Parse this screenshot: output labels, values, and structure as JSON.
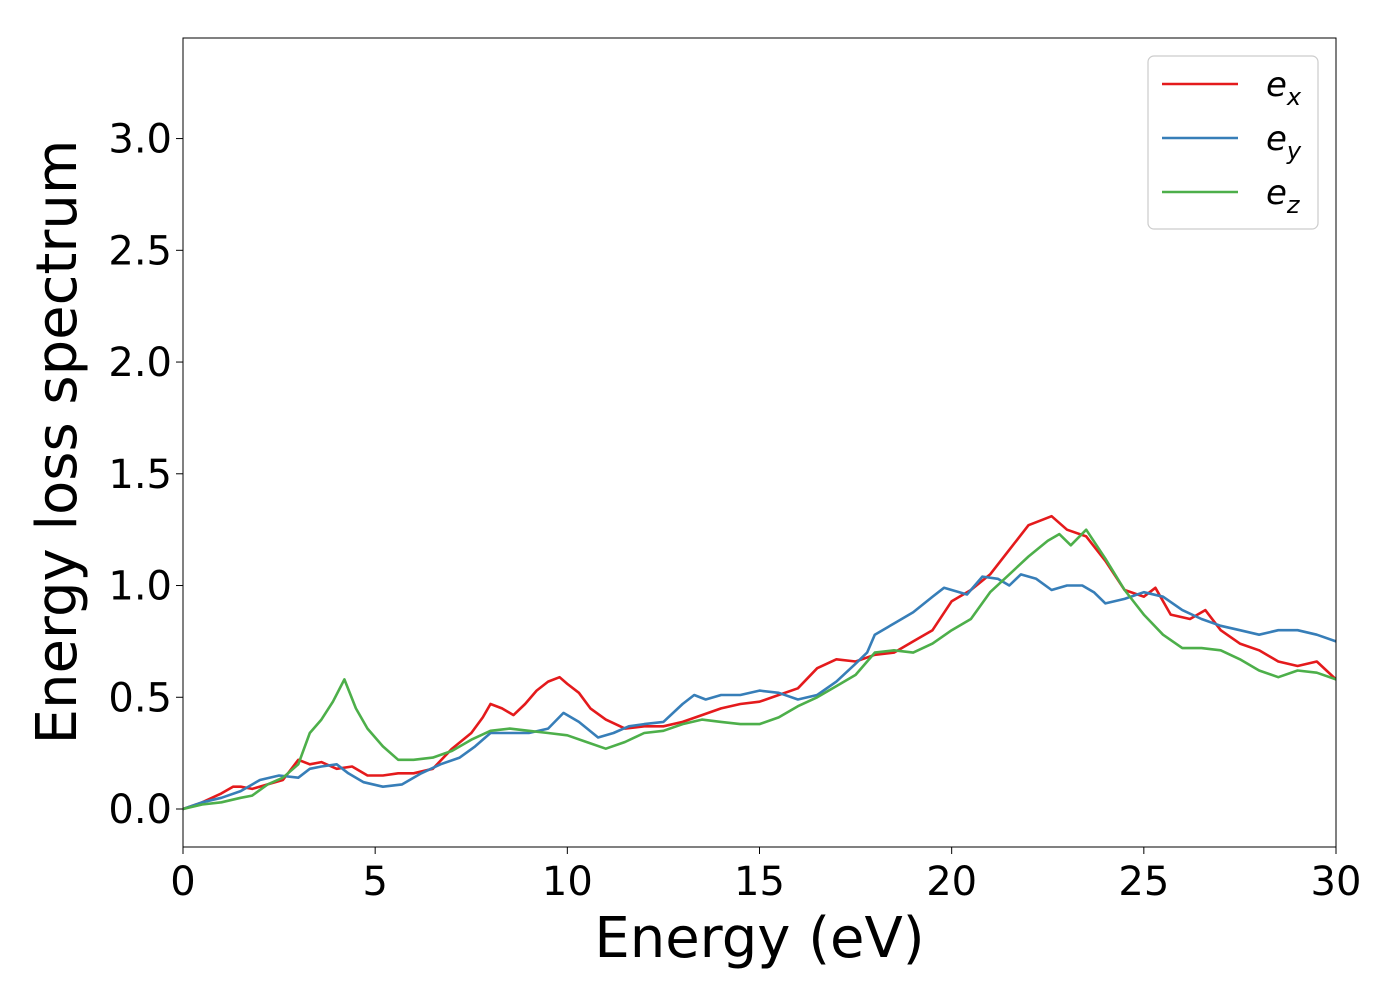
{
  "chart_data": {
    "type": "line",
    "xlabel": "Energy (eV)",
    "ylabel": "Energy loss spectrum",
    "xlim": [
      0,
      30
    ],
    "ylim": [
      -0.17,
      3.45
    ],
    "xticks": [
      0,
      5,
      10,
      15,
      20,
      25,
      30
    ],
    "yticks": [
      0.0,
      0.5,
      1.0,
      1.5,
      2.0,
      2.5,
      3.0
    ],
    "xtick_labels": [
      "0",
      "5",
      "10",
      "15",
      "20",
      "25",
      "30"
    ],
    "ytick_labels": [
      "0.0",
      "0.5",
      "1.0",
      "1.5",
      "2.0",
      "2.5",
      "3.0"
    ],
    "grid": false,
    "legend_position": "top-right",
    "series": [
      {
        "name": "e_x",
        "base": "e",
        "sub": "x",
        "color": "#e41a1c",
        "x": [
          0,
          0.5,
          1.0,
          1.3,
          1.5,
          1.8,
          2.2,
          2.6,
          3.0,
          3.3,
          3.6,
          4.0,
          4.4,
          4.8,
          5.2,
          5.6,
          6.0,
          6.5,
          7.0,
          7.5,
          7.8,
          8.0,
          8.3,
          8.6,
          8.9,
          9.2,
          9.5,
          9.8,
          10.0,
          10.3,
          10.6,
          11.0,
          11.5,
          12.0,
          12.5,
          13.0,
          13.5,
          14.0,
          14.5,
          15.0,
          15.5,
          16.0,
          16.5,
          17.0,
          17.5,
          18.0,
          18.5,
          19.0,
          19.5,
          20.0,
          20.5,
          21.0,
          21.5,
          22.0,
          22.3,
          22.6,
          23.0,
          23.5,
          24.0,
          24.5,
          25.0,
          25.3,
          25.7,
          26.2,
          26.6,
          27.0,
          27.5,
          28.0,
          28.5,
          29.0,
          29.5,
          30.0
        ],
        "y": [
          0.0,
          0.03,
          0.07,
          0.1,
          0.1,
          0.09,
          0.11,
          0.13,
          0.22,
          0.2,
          0.21,
          0.18,
          0.19,
          0.15,
          0.15,
          0.16,
          0.16,
          0.18,
          0.27,
          0.34,
          0.41,
          0.47,
          0.45,
          0.42,
          0.47,
          0.53,
          0.57,
          0.59,
          0.56,
          0.52,
          0.45,
          0.4,
          0.36,
          0.37,
          0.37,
          0.39,
          0.42,
          0.45,
          0.47,
          0.48,
          0.51,
          0.54,
          0.63,
          0.67,
          0.66,
          0.69,
          0.7,
          0.75,
          0.8,
          0.93,
          0.98,
          1.05,
          1.16,
          1.27,
          1.29,
          1.31,
          1.25,
          1.22,
          1.11,
          0.98,
          0.95,
          0.99,
          0.87,
          0.85,
          0.89,
          0.8,
          0.74,
          0.71,
          0.66,
          0.64,
          0.66,
          0.58
        ]
      },
      {
        "name": "e_y",
        "base": "e",
        "sub": "y",
        "color": "#377eb8",
        "x": [
          0,
          0.5,
          1.0,
          1.5,
          2.0,
          2.5,
          3.0,
          3.3,
          3.6,
          4.0,
          4.3,
          4.7,
          5.2,
          5.7,
          6.2,
          6.7,
          7.2,
          7.6,
          8.0,
          8.5,
          9.0,
          9.5,
          9.9,
          10.3,
          10.8,
          11.2,
          11.6,
          12.0,
          12.5,
          13.0,
          13.3,
          13.6,
          14.0,
          14.5,
          15.0,
          15.5,
          16.0,
          16.5,
          17.0,
          17.5,
          17.8,
          18.0,
          18.5,
          19.0,
          19.5,
          19.8,
          20.0,
          20.4,
          20.8,
          21.2,
          21.5,
          21.8,
          22.2,
          22.6,
          23.0,
          23.4,
          23.7,
          24.0,
          24.5,
          25.0,
          25.5,
          26.0,
          26.5,
          27.0,
          27.5,
          28.0,
          28.5,
          29.0,
          29.5,
          30.0
        ],
        "y": [
          0.0,
          0.03,
          0.05,
          0.08,
          0.13,
          0.15,
          0.14,
          0.18,
          0.19,
          0.2,
          0.16,
          0.12,
          0.1,
          0.11,
          0.16,
          0.2,
          0.23,
          0.28,
          0.34,
          0.34,
          0.34,
          0.36,
          0.43,
          0.39,
          0.32,
          0.34,
          0.37,
          0.38,
          0.39,
          0.47,
          0.51,
          0.49,
          0.51,
          0.51,
          0.53,
          0.52,
          0.49,
          0.51,
          0.57,
          0.65,
          0.7,
          0.78,
          0.83,
          0.88,
          0.95,
          0.99,
          0.98,
          0.96,
          1.04,
          1.03,
          1.0,
          1.05,
          1.03,
          0.98,
          1.0,
          1.0,
          0.97,
          0.92,
          0.94,
          0.97,
          0.95,
          0.89,
          0.85,
          0.82,
          0.8,
          0.78,
          0.8,
          0.8,
          0.78,
          0.75
        ]
      },
      {
        "name": "e_z",
        "base": "e",
        "sub": "z",
        "color": "#4daf4a",
        "x": [
          0,
          0.5,
          1.0,
          1.5,
          1.8,
          2.2,
          2.6,
          3.0,
          3.3,
          3.6,
          3.9,
          4.2,
          4.5,
          4.8,
          5.2,
          5.6,
          6.0,
          6.5,
          7.0,
          7.5,
          8.0,
          8.5,
          9.0,
          9.5,
          10.0,
          10.5,
          11.0,
          11.5,
          12.0,
          12.5,
          13.0,
          13.5,
          14.0,
          14.5,
          15.0,
          15.5,
          16.0,
          16.5,
          17.0,
          17.5,
          18.0,
          18.5,
          19.0,
          19.5,
          20.0,
          20.5,
          21.0,
          21.5,
          22.0,
          22.5,
          22.8,
          23.1,
          23.5,
          24.0,
          24.5,
          25.0,
          25.5,
          26.0,
          26.5,
          27.0,
          27.5,
          28.0,
          28.5,
          29.0,
          29.5,
          30.0
        ],
        "y": [
          0.0,
          0.02,
          0.03,
          0.05,
          0.06,
          0.11,
          0.14,
          0.2,
          0.34,
          0.4,
          0.48,
          0.58,
          0.45,
          0.36,
          0.28,
          0.22,
          0.22,
          0.23,
          0.26,
          0.31,
          0.35,
          0.36,
          0.35,
          0.34,
          0.33,
          0.3,
          0.27,
          0.3,
          0.34,
          0.35,
          0.38,
          0.4,
          0.39,
          0.38,
          0.38,
          0.41,
          0.46,
          0.5,
          0.55,
          0.6,
          0.7,
          0.71,
          0.7,
          0.74,
          0.8,
          0.85,
          0.97,
          1.05,
          1.13,
          1.2,
          1.23,
          1.18,
          1.25,
          1.12,
          0.98,
          0.87,
          0.78,
          0.72,
          0.72,
          0.71,
          0.67,
          0.62,
          0.59,
          0.62,
          0.61,
          0.58
        ]
      }
    ]
  }
}
